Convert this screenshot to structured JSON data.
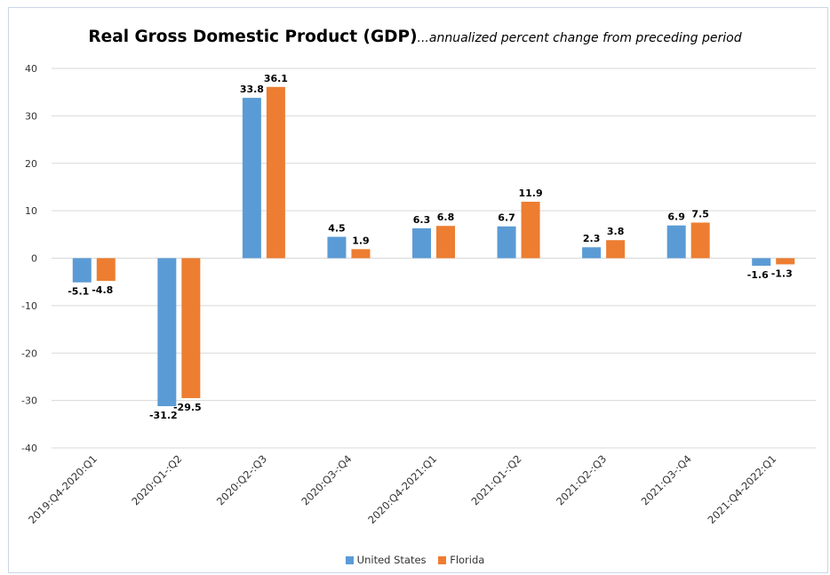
{
  "chart_data": {
    "type": "bar",
    "title": "Real Gross Domestic Product (GDP)",
    "subtitle": "...annualized percent change from preceding period",
    "categories": [
      "2019:Q4-2020:Q1",
      "2020:Q1-:Q2",
      "2020:Q2-:Q3",
      "2020:Q3-:Q4",
      "2020:Q4-2021:Q1",
      "2021:Q1-:Q2",
      "2021:Q2-:Q3",
      "2021:Q3-:Q4",
      "2021:Q4-2022:Q1"
    ],
    "series": [
      {
        "name": "United States",
        "color": "#5b9bd5",
        "values": [
          -5.1,
          -31.2,
          33.8,
          4.5,
          6.3,
          6.7,
          2.3,
          6.9,
          -1.6
        ],
        "labels": [
          "-5.1",
          "-31.2",
          "33.8",
          "4.5",
          "6.3",
          "6.7",
          "2.3",
          "6.9",
          "-1.6"
        ]
      },
      {
        "name": "Florida",
        "color": "#ed7d31",
        "values": [
          -4.8,
          -29.5,
          36.1,
          1.9,
          6.8,
          11.9,
          3.8,
          7.5,
          -1.3
        ],
        "labels": [
          "-4.8",
          "-29.5",
          "36.1",
          "1.9",
          "6.8",
          "11.9",
          "3.8",
          "7.5",
          "-1.3"
        ]
      }
    ],
    "ylim": [
      -40,
      40
    ],
    "yticks": [
      "40",
      "30",
      "20",
      "10",
      "0",
      "-10",
      "-20",
      "-30",
      "-40"
    ],
    "grid": true,
    "legend_position": "bottom"
  }
}
